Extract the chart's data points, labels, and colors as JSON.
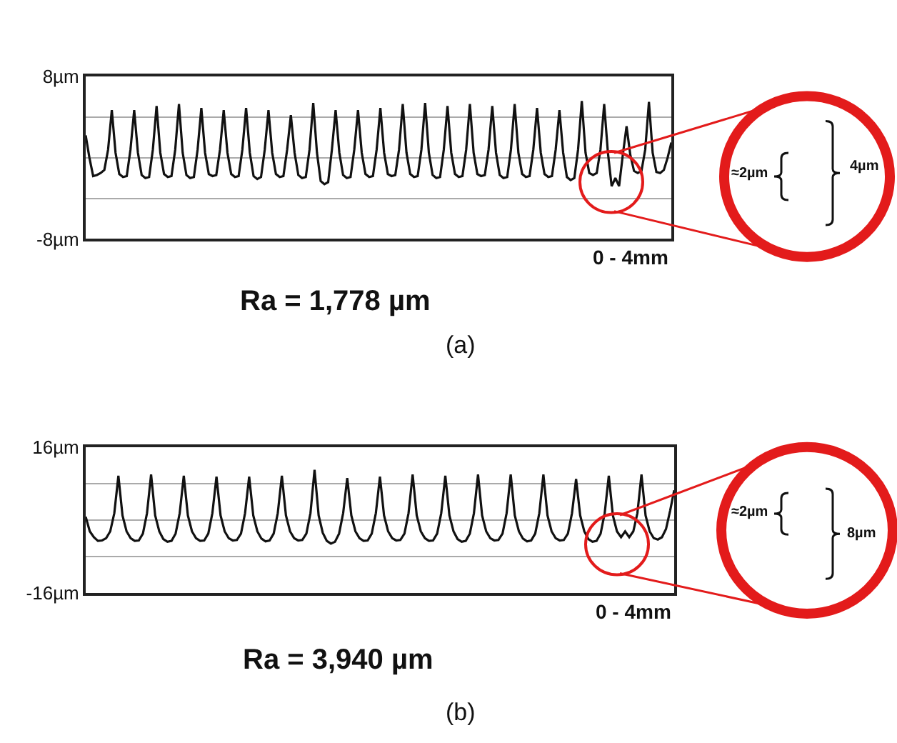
{
  "chart_data": [
    {
      "type": "line",
      "xlabel": "0 - 4mm",
      "ylim": [
        -8,
        8
      ],
      "grid": "y",
      "tick_labels": "y",
      "yticks": [
        {
          "value": -8,
          "label": "-8µm"
        },
        {
          "value": -4,
          "label": null
        },
        {
          "value": 0,
          "label": null
        },
        {
          "value": 4,
          "label": null
        },
        {
          "value": 8,
          "label": "8µm"
        }
      ],
      "annotations": [
        "Ra = 1,778 µm",
        "(a)",
        "≈2µm",
        "4µm"
      ],
      "categories": [
        null,
        null,
        null,
        null,
        null,
        null,
        null,
        null,
        null,
        null,
        null,
        null,
        null,
        null,
        null,
        null,
        null,
        null,
        null,
        null,
        null,
        null,
        null,
        null,
        null,
        null,
        null,
        null,
        null,
        null,
        null,
        null,
        null,
        null,
        null,
        null,
        null,
        null,
        null,
        null,
        null,
        null,
        null,
        null,
        null,
        null,
        null,
        null,
        null,
        null,
        null,
        null,
        null,
        null,
        null,
        null,
        null,
        null,
        null,
        null,
        null,
        null,
        null,
        null,
        null,
        null,
        null,
        null,
        null,
        null,
        null,
        null,
        null,
        null,
        null,
        null,
        null,
        null,
        null,
        null,
        null,
        null,
        null,
        null,
        null,
        null,
        null,
        null,
        null,
        null,
        null,
        null,
        null,
        null,
        null,
        null,
        null,
        null,
        null,
        null,
        null,
        null,
        null,
        null,
        null,
        null,
        null,
        null,
        null,
        null,
        null,
        null,
        null,
        null,
        null,
        null,
        null,
        null,
        null,
        null,
        null,
        null,
        null,
        null,
        null,
        null,
        null,
        null,
        null,
        null,
        null,
        null,
        null,
        null,
        null,
        null,
        null,
        null,
        null,
        null,
        null,
        null,
        null,
        null,
        null,
        null,
        null,
        null,
        null,
        null,
        null,
        null,
        null,
        null,
        null,
        null,
        null,
        null
      ],
      "series": [
        {
          "color": "#111111",
          "values": [
            2.2,
            0.0,
            -1.8,
            -1.7,
            -1.5,
            -1.2,
            0.8,
            4.7,
            0.5,
            -1.6,
            -1.9,
            -1.8,
            0.8,
            4.7,
            0.5,
            -1.7,
            -2.0,
            -1.9,
            0.8,
            5.1,
            0.5,
            -1.6,
            -1.9,
            -1.8,
            0.8,
            5.3,
            0.5,
            -1.7,
            -2.0,
            -1.9,
            0.8,
            4.9,
            0.5,
            -1.6,
            -1.8,
            -1.7,
            0.8,
            4.7,
            0.5,
            -1.6,
            -1.9,
            -1.8,
            0.8,
            4.9,
            0.5,
            -1.8,
            -2.1,
            -1.9,
            0.8,
            4.7,
            0.5,
            -1.6,
            -1.9,
            -1.8,
            0.8,
            4.2,
            0.5,
            -1.7,
            -2.0,
            -1.9,
            0.8,
            5.4,
            0.5,
            -2.3,
            -2.6,
            -2.4,
            0.8,
            4.7,
            0.5,
            -1.7,
            -2.0,
            -1.9,
            0.8,
            4.7,
            0.5,
            -1.6,
            -1.9,
            -1.8,
            0.8,
            4.9,
            0.5,
            -1.6,
            -1.8,
            -1.7,
            0.8,
            5.3,
            0.5,
            -1.6,
            -1.9,
            -1.8,
            0.8,
            5.4,
            0.5,
            -1.7,
            -2.0,
            -1.9,
            0.8,
            5.1,
            0.5,
            -1.6,
            -1.9,
            -1.8,
            0.8,
            5.3,
            0.5,
            -1.6,
            -1.8,
            -1.7,
            0.8,
            5.1,
            0.5,
            -1.7,
            -2.0,
            -1.9,
            0.8,
            5.3,
            0.5,
            -1.6,
            -1.9,
            -1.8,
            0.8,
            4.9,
            0.5,
            -1.6,
            -1.9,
            -1.8,
            0.8,
            4.7,
            0.5,
            -1.9,
            -2.2,
            -2.0,
            0.8,
            5.6,
            0.5,
            -1.5,
            -1.7,
            -1.5,
            0.8,
            5.3,
            0.5,
            -2.8,
            -2.0,
            -2.8,
            0.3,
            3.1,
            0.3,
            -1.3,
            -1.5,
            -1.3,
            0.8,
            5.5,
            0.5,
            -1.4,
            -1.5,
            -1.2,
            0.0,
            1.5
          ]
        }
      ]
    },
    {
      "type": "line",
      "xlabel": "0 - 4mm",
      "ylim": [
        -16,
        16
      ],
      "grid": "y",
      "tick_labels": "y",
      "yticks": [
        {
          "value": -16,
          "label": "-16µm"
        },
        {
          "value": -8,
          "label": null
        },
        {
          "value": 0,
          "label": null
        },
        {
          "value": 8,
          "label": null
        },
        {
          "value": 16,
          "label": "16µm"
        }
      ],
      "annotations": [
        "Ra = 3,940 µm",
        "(b)",
        "≈2µm",
        "8µm"
      ],
      "categories": [
        null,
        null,
        null,
        null,
        null,
        null,
        null,
        null,
        null,
        null,
        null,
        null,
        null,
        null,
        null,
        null,
        null,
        null,
        null,
        null,
        null,
        null,
        null,
        null,
        null,
        null,
        null,
        null,
        null,
        null,
        null,
        null,
        null,
        null,
        null,
        null,
        null,
        null,
        null,
        null,
        null,
        null,
        null,
        null,
        null,
        null,
        null,
        null,
        null,
        null,
        null,
        null,
        null,
        null,
        null,
        null,
        null,
        null,
        null,
        null,
        null,
        null,
        null,
        null,
        null,
        null,
        null,
        null,
        null,
        null,
        null,
        null,
        null,
        null,
        null,
        null,
        null,
        null,
        null,
        null,
        null,
        null,
        null,
        null,
        null,
        null,
        null,
        null,
        null,
        null,
        null,
        null,
        null,
        null,
        null,
        null,
        null,
        null,
        null,
        null,
        null,
        null,
        null,
        null,
        null,
        null,
        null,
        null,
        null,
        null,
        null,
        null,
        null,
        null,
        null,
        null,
        null,
        null,
        null,
        null,
        null,
        null,
        null,
        null,
        null,
        null,
        null,
        null,
        null,
        null,
        null,
        null,
        null,
        null,
        null,
        null,
        null,
        null,
        null,
        null,
        null,
        null,
        null,
        null,
        null
      ],
      "series": [
        {
          "color": "#111111",
          "values": [
            0.7,
            -2.5,
            -3.8,
            -4.6,
            -4.5,
            -4.0,
            -2.5,
            1.5,
            9.7,
            1.0,
            -2.5,
            -4.0,
            -4.6,
            -4.5,
            -3.0,
            1.5,
            10,
            1.0,
            -2.5,
            -4.2,
            -4.8,
            -4.6,
            -3.0,
            1.5,
            9.7,
            1.0,
            -2.5,
            -4.0,
            -4.6,
            -4.5,
            -3.0,
            1.5,
            9.5,
            1.0,
            -2.5,
            -4.0,
            -4.5,
            -4.4,
            -3.0,
            1.5,
            9.5,
            1.0,
            -2.5,
            -4.1,
            -4.7,
            -4.5,
            -3.0,
            1.5,
            9.7,
            1.0,
            -2.5,
            -4.0,
            -4.5,
            -4.4,
            -3.0,
            1.5,
            11,
            1.0,
            -2.8,
            -4.6,
            -5.2,
            -4.8,
            -3.0,
            1.5,
            9.2,
            1.0,
            -2.5,
            -4.0,
            -4.6,
            -4.5,
            -3.0,
            1.5,
            9.5,
            1.0,
            -2.5,
            -4.0,
            -4.5,
            -4.4,
            -3.0,
            1.5,
            10,
            1.0,
            -2.5,
            -4.0,
            -4.6,
            -4.5,
            -3.0,
            1.5,
            9.7,
            1.0,
            -2.5,
            -4.2,
            -4.8,
            -4.6,
            -3.0,
            1.5,
            10,
            1.0,
            -2.5,
            -4.0,
            -4.5,
            -4.4,
            -3.0,
            1.5,
            10,
            1.0,
            -2.5,
            -4.1,
            -4.7,
            -4.5,
            -3.0,
            1.5,
            10,
            1.0,
            -2.5,
            -4.0,
            -4.5,
            -4.4,
            -3.0,
            1.5,
            9,
            1.0,
            -2.5,
            -4.2,
            -4.8,
            -4.6,
            -3.0,
            1.5,
            9.7,
            1.0,
            -2.5,
            -3.8,
            -2.5,
            -3.8,
            -2.5,
            1.5,
            10,
            1.0,
            -2.5,
            -4.0,
            -4.3,
            -3.8,
            -2.0,
            2.0,
            6.5
          ]
        }
      ]
    }
  ]
}
